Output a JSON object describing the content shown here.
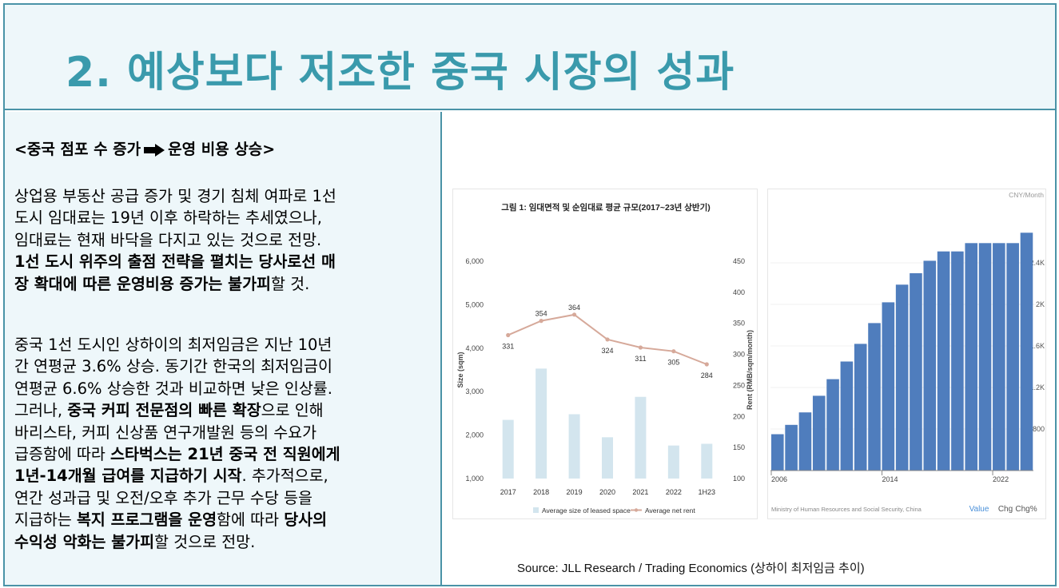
{
  "title": "2. 예상보다 저조한 중국 시장의 성과",
  "heading": {
    "left": "<중국 점포 수 증가",
    "right": "운영 비용 상승>"
  },
  "para1": [
    [
      {
        "t": "상업용 부동산 공급 증가 및 경기 침체 여파로 1선"
      }
    ],
    [
      {
        "t": "도시 임대료는 19년 이후 하락하는 추세였으나,"
      }
    ],
    [
      {
        "t": "임대료는 현재 바닥을 다지고 있는 것으로 전망."
      }
    ],
    [
      {
        "t": "1선 도시 위주의 출점 전략을 펼치는 당사로선 매",
        "b": true
      }
    ],
    [
      {
        "t": "장 확대에 따른 운영비용 증가는 불가피",
        "b": true
      },
      {
        "t": "할 것."
      }
    ]
  ],
  "para2": [
    [
      {
        "t": "중국 1선 도시인 상하이의 최저임금은 지난 10년"
      }
    ],
    [
      {
        "t": "간 연평균 3.6% 상승. 동기간 한국의 최저임금이"
      }
    ],
    [
      {
        "t": "연평균 6.6% 상승한 것과 비교하면 낮은 인상률."
      }
    ],
    [
      {
        "t": "그러나, "
      },
      {
        "t": "중국 커피 전문점의 빠른 확장",
        "b": true
      },
      {
        "t": "으로 인해"
      }
    ],
    [
      {
        "t": "바리스타, 커피 신상품 연구개발원 등의 수요가"
      }
    ],
    [
      {
        "t": "급증함에 따라 "
      },
      {
        "t": "스타벅스는 21년 중국 전 직원에게",
        "b": true
      }
    ],
    [
      {
        "t": "1년-14개월 급여를 지급하기 시작",
        "b": true
      },
      {
        "t": ". 추가적으로,"
      }
    ],
    [
      {
        "t": "연간 성과급 및 오전/오후 추가 근무 수당 등을"
      }
    ],
    [
      {
        "t": "지급하는 "
      },
      {
        "t": "복지 프로그램을 운영",
        "b": true
      },
      {
        "t": "함에 따라 "
      },
      {
        "t": "당사의",
        "b": true
      }
    ],
    [
      {
        "t": "수익성 악화는 불가피",
        "b": true
      },
      {
        "t": "할 것으로 전망."
      }
    ]
  ],
  "source": "Source: JLL Research / Trading Economics (상하이 최저임금 추이)",
  "chart_data": [
    {
      "type": "bar+line",
      "title": "그림 1: 임대면적 및 순임대료 평균 규모(2017~23년 상반기)",
      "categories": [
        "2017",
        "2018",
        "2019",
        "2020",
        "2021",
        "2022",
        "1H23"
      ],
      "series": [
        {
          "name": "Average size of leased space",
          "type": "bar",
          "axis": "left",
          "color": "#d3e5ee",
          "values": [
            2350,
            3530,
            2480,
            1950,
            2880,
            1760,
            1800
          ]
        },
        {
          "name": "Average net rent",
          "type": "line",
          "axis": "right",
          "color": "#d6a99a",
          "values": [
            331,
            354,
            364,
            324,
            311,
            305,
            284
          ]
        }
      ],
      "ylabel": "Size (sqm)",
      "y2label": "Rent (RMB/sqm/month)",
      "ylim": [
        1000,
        6000
      ],
      "y2lim": [
        100,
        450
      ],
      "yticks": [
        "1,000",
        "2,000",
        "3,000",
        "4,000",
        "5,000",
        "6,000"
      ],
      "y2ticks": [
        "100",
        "150",
        "200",
        "250",
        "300",
        "350",
        "400",
        "450"
      ],
      "data_labels": [
        "331",
        "354",
        "364",
        "324",
        "311",
        "305",
        "284"
      ]
    },
    {
      "type": "bar",
      "unit": "CNY/Month",
      "x": [
        2006,
        2007,
        2008,
        2009,
        2010,
        2011,
        2012,
        2013,
        2014,
        2015,
        2016,
        2017,
        2018,
        2019,
        2020,
        2021,
        2022,
        2023,
        2024
      ],
      "values": [
        750,
        840,
        960,
        1120,
        1280,
        1450,
        1620,
        1820,
        2020,
        2190,
        2300,
        2420,
        2510,
        2510,
        2590,
        2590,
        2590,
        2590,
        2690
      ],
      "xticks": [
        "2006",
        "2014",
        "2022"
      ],
      "yticks": [
        "800",
        "1.2K",
        "1.6K",
        "2K",
        "2.4K"
      ],
      "ylim": [
        400,
        2800
      ],
      "color": "#4f7dbd",
      "footer": "Ministry of Human Resources and Social Security, China",
      "tabs": [
        "Value",
        "Chg",
        "Chg%"
      ],
      "tab_colors": [
        "#4a90d9",
        "#555555",
        "#555555"
      ]
    }
  ]
}
